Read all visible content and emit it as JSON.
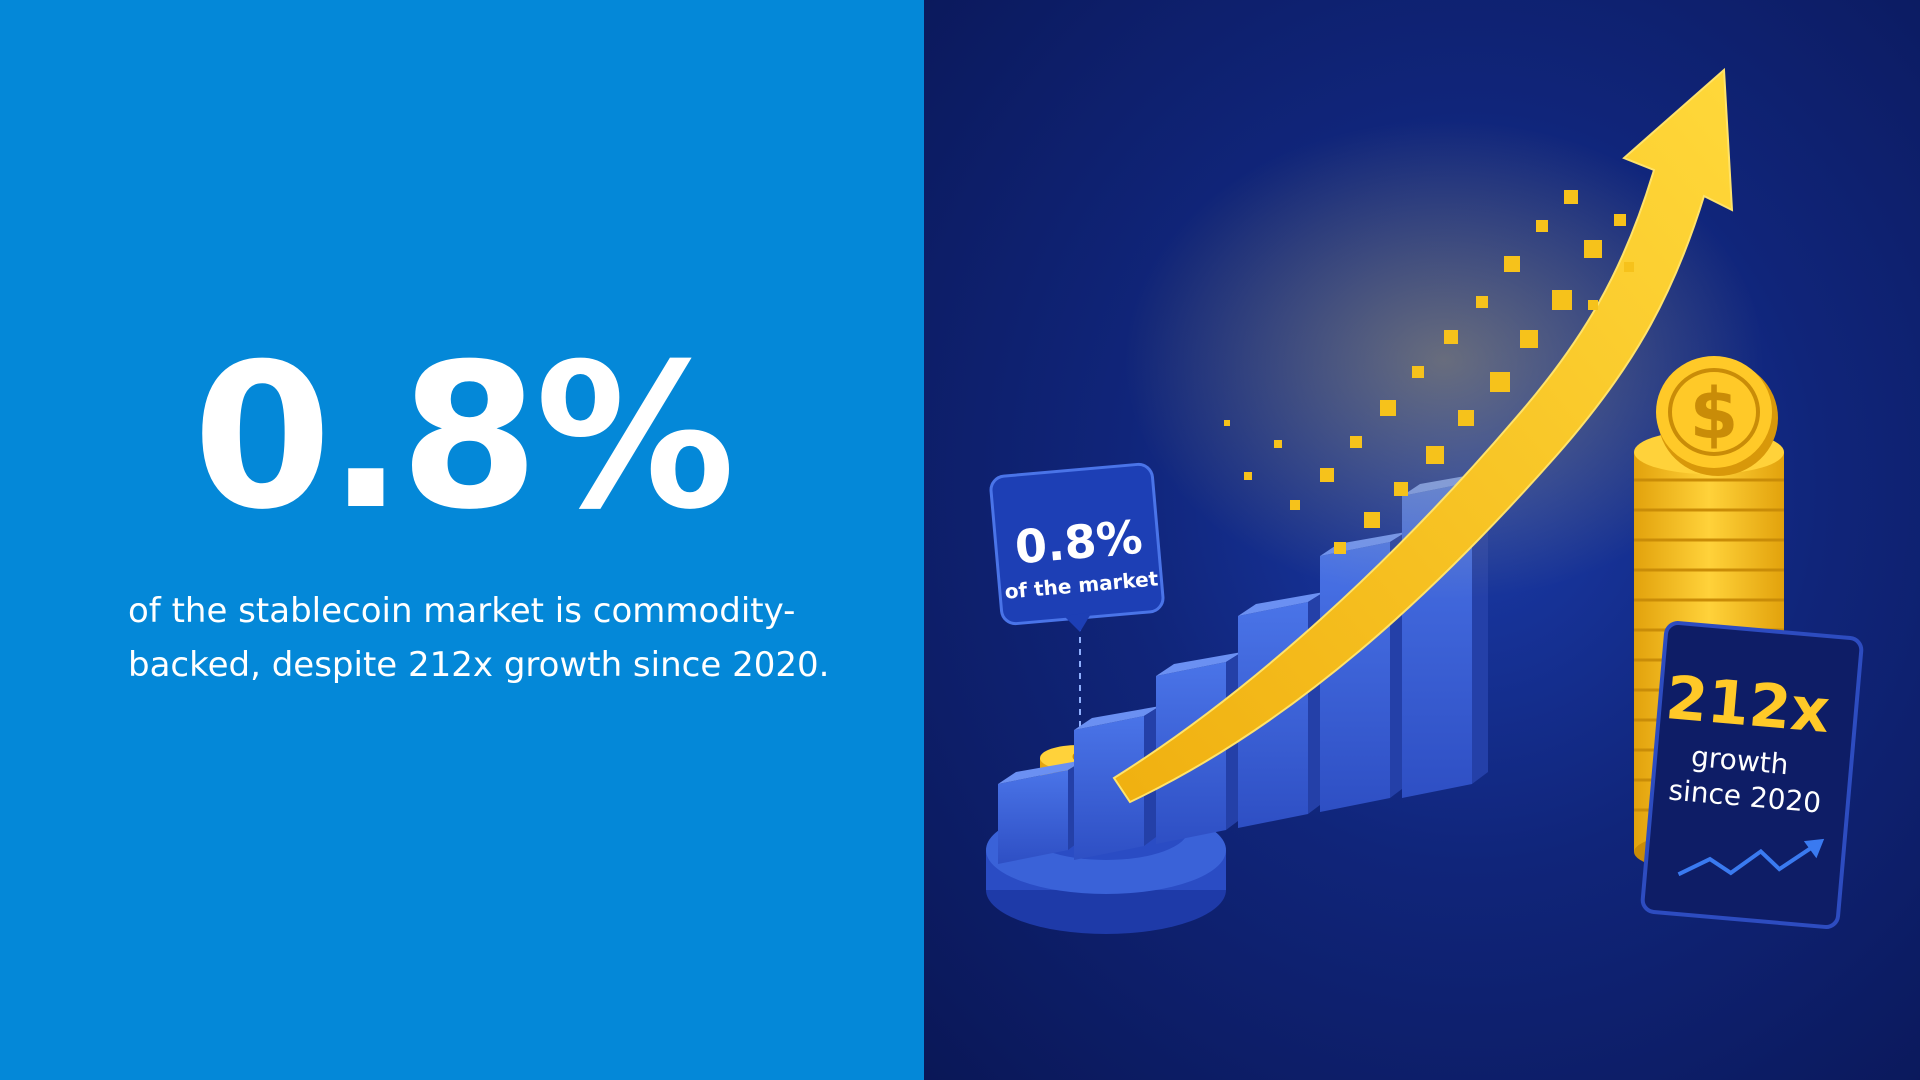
{
  "stat": {
    "value": "0.8%",
    "caption_line1": "of the stablecoin market is commodity-",
    "caption_line2": "backed, despite 212x growth since 2020."
  },
  "illustration": {
    "bubble_value": "0.8%",
    "bubble_label": "of the market",
    "growth_value": "212x",
    "growth_label_line1": "growth",
    "growth_label_line2": "since 2020",
    "coin_symbol": "$",
    "colors": {
      "left_bg": "#0488d8",
      "right_bg": "#10257a",
      "gold": "#f6c21b",
      "bar_blue": "#3a62d8"
    }
  }
}
